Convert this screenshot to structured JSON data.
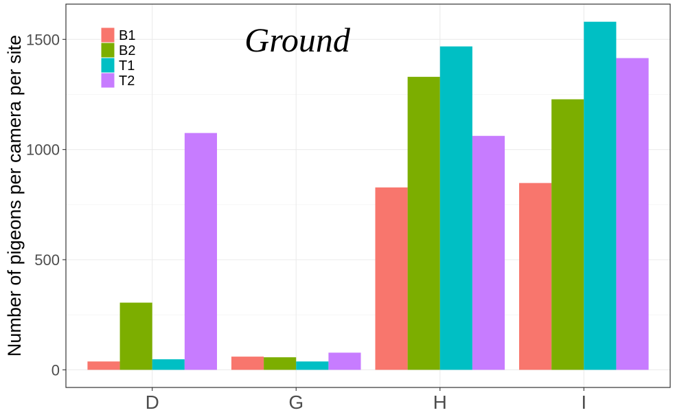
{
  "chart_data": {
    "type": "bar",
    "title": "Ground",
    "ylabel": "Number of pigeons per camera per site",
    "xlabel": "",
    "categories": [
      "D",
      "G",
      "H",
      "I"
    ],
    "ylim": [
      -80,
      1660
    ],
    "yticks": [
      0,
      500,
      1000,
      1500
    ],
    "grid": true,
    "legend_position": "top-left",
    "series": [
      {
        "name": "B1",
        "color": "#F8766D",
        "values": [
          38,
          60,
          828,
          848
        ]
      },
      {
        "name": "B2",
        "color": "#7CAE00",
        "values": [
          305,
          57,
          1330,
          1228
        ]
      },
      {
        "name": "T1",
        "color": "#00BFC4",
        "values": [
          48,
          38,
          1468,
          1580
        ]
      },
      {
        "name": "T2",
        "color": "#C77CFF",
        "values": [
          1075,
          78,
          1062,
          1415
        ]
      }
    ]
  }
}
